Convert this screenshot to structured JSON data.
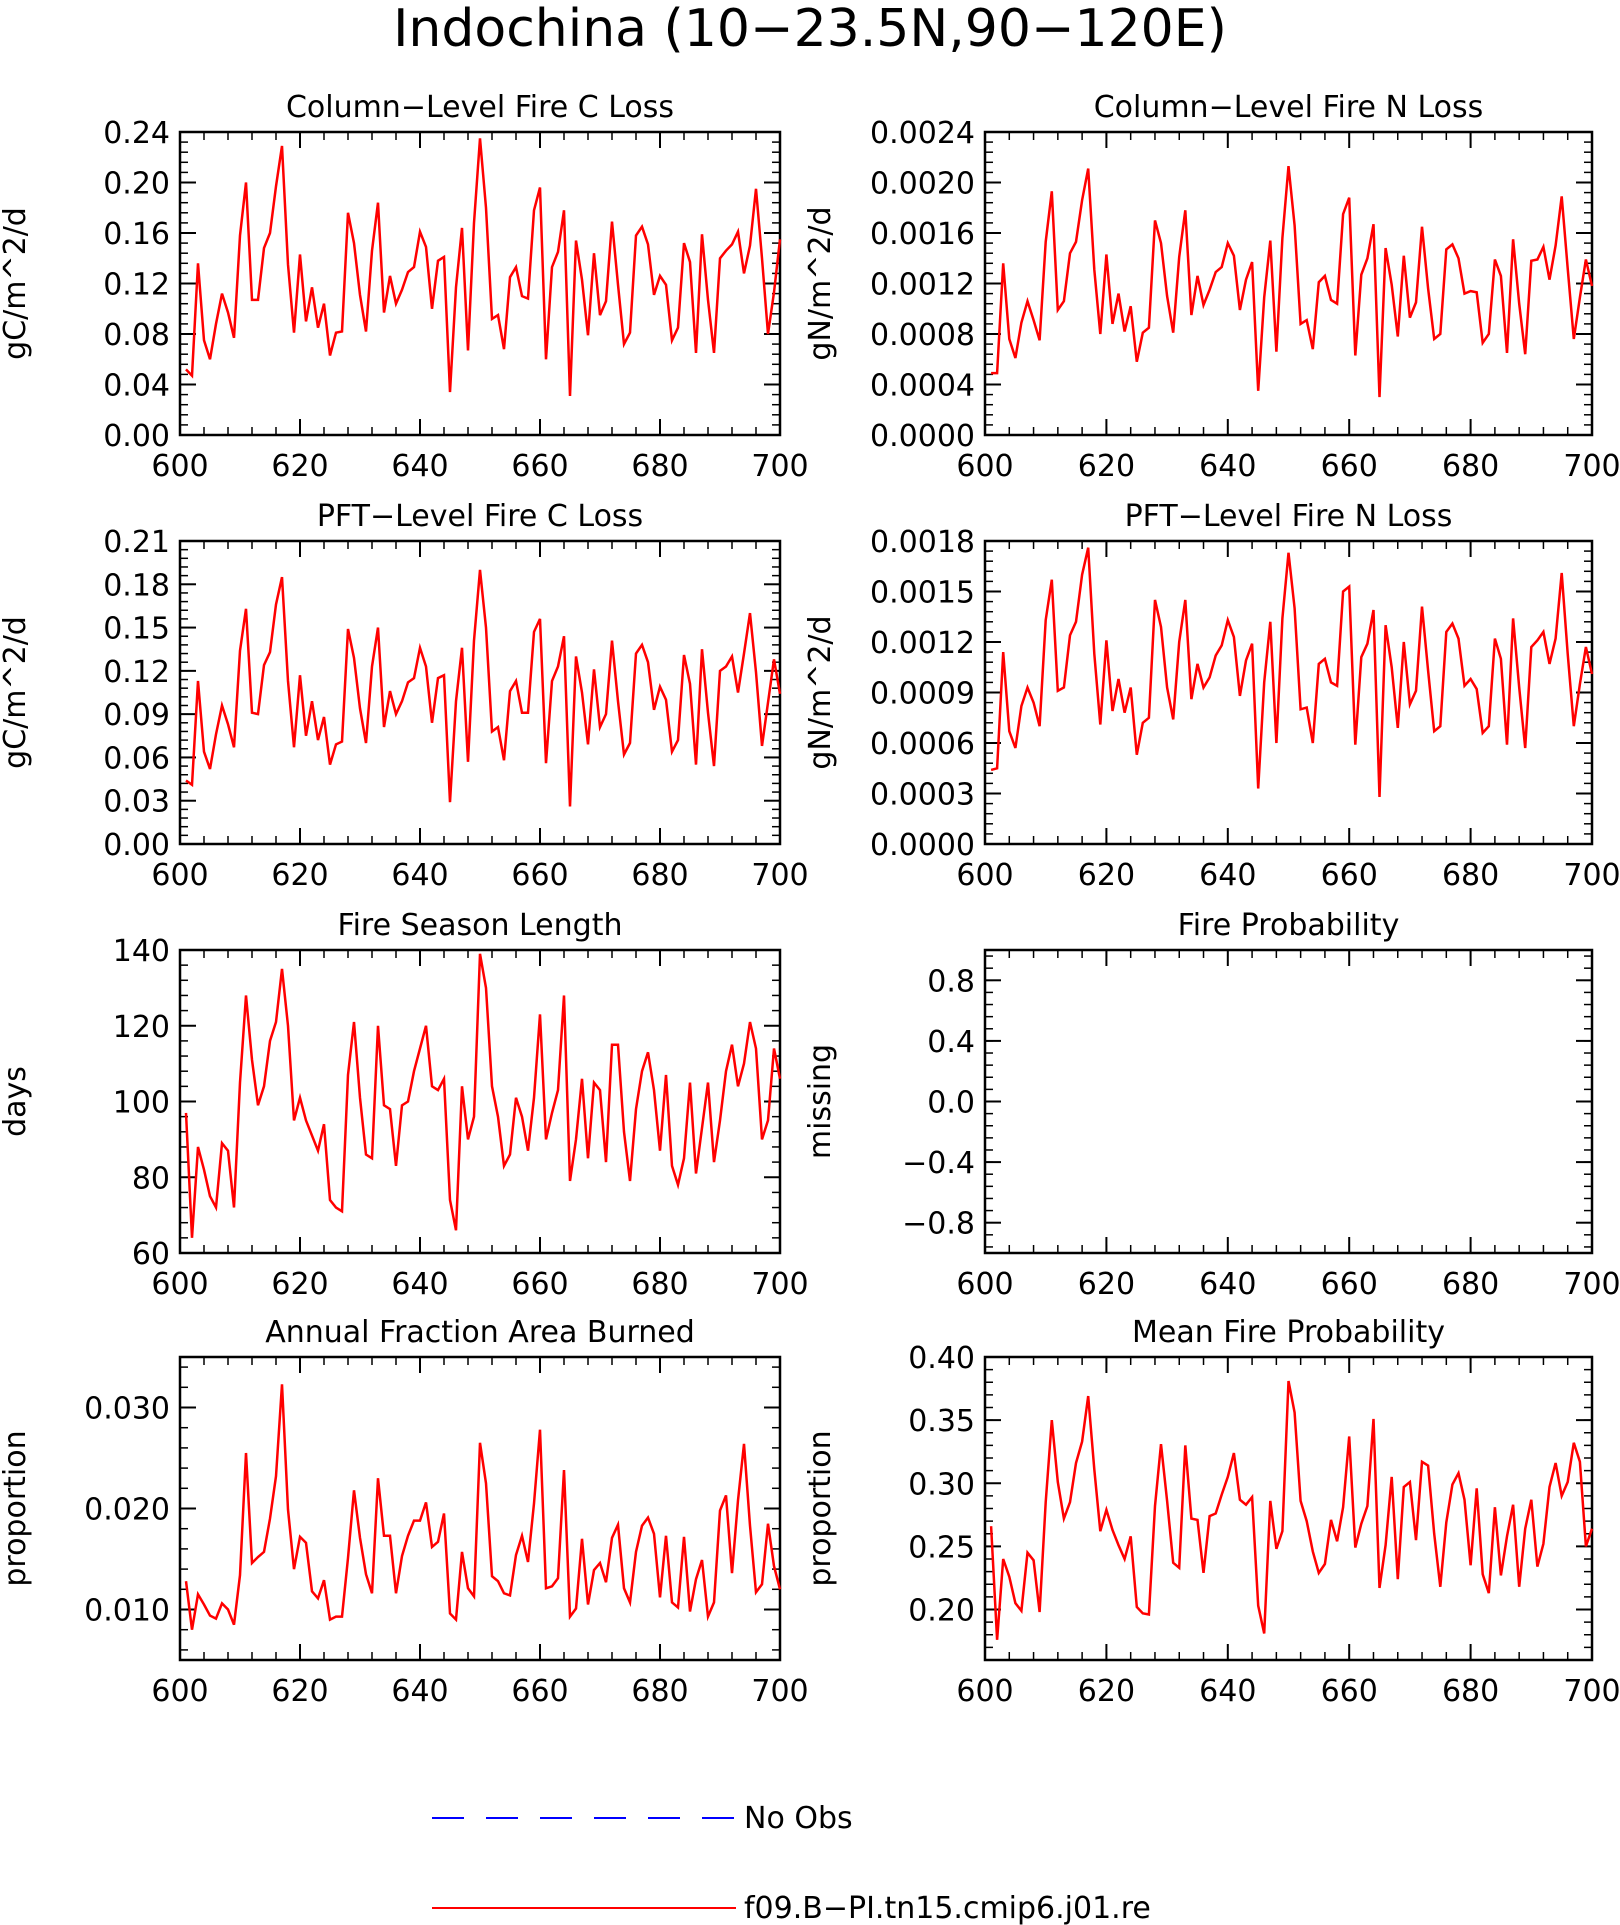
{
  "figure": {
    "title": "Indochina (10−23.5N,90−120E)",
    "line_color": "#ff0000",
    "obs_color": "#0000ff"
  },
  "legend": {
    "obs_label": "No Obs",
    "model_label": "f09.B−PI.tn15.cmip6.j01.re"
  },
  "chart_data": [
    {
      "type": "line",
      "title": "Column−Level Fire C Loss",
      "xlabel": "",
      "ylabel": "gC/m^2/d",
      "xlim": [
        600,
        700
      ],
      "ylim": [
        0,
        0.24
      ],
      "xticks": [
        600,
        620,
        640,
        660,
        680,
        700
      ],
      "yticks": [
        0,
        0.04,
        0.08,
        0.12,
        0.16,
        0.2,
        0.24
      ],
      "ytick_labels": [
        "0.00",
        "0.04",
        "0.08",
        "0.12",
        "0.16",
        "0.20",
        "0.24"
      ],
      "x_start": 601,
      "series": [
        {
          "values": [
            0.052,
            0.047,
            0.136,
            0.075,
            0.06,
            0.088,
            0.112,
            0.097,
            0.077,
            0.158,
            0.2,
            0.107,
            0.107,
            0.148,
            0.16,
            0.197,
            0.229,
            0.135,
            0.081,
            0.143,
            0.09,
            0.117,
            0.085,
            0.104,
            0.063,
            0.081,
            0.082,
            0.176,
            0.152,
            0.111,
            0.082,
            0.146,
            0.184,
            0.097,
            0.126,
            0.104,
            0.115,
            0.129,
            0.133,
            0.161,
            0.149,
            0.1,
            0.138,
            0.141,
            0.034,
            0.117,
            0.164,
            0.067,
            0.168,
            0.235,
            0.18,
            0.092,
            0.095,
            0.068,
            0.125,
            0.133,
            0.11,
            0.108,
            0.178,
            0.196,
            0.06,
            0.133,
            0.145,
            0.178,
            0.031,
            0.154,
            0.123,
            0.079,
            0.144,
            0.095,
            0.106,
            0.169,
            0.119,
            0.072,
            0.081,
            0.158,
            0.165,
            0.151,
            0.111,
            0.126,
            0.119,
            0.075,
            0.085,
            0.152,
            0.137,
            0.065,
            0.159,
            0.107,
            0.065,
            0.14,
            0.146,
            0.151,
            0.161,
            0.128,
            0.15,
            0.195,
            0.14,
            0.08,
            0.113,
            0.155
          ]
        }
      ]
    },
    {
      "type": "line",
      "title": "Column−Level Fire N Loss",
      "xlabel": "",
      "ylabel": "gN/m^2/d",
      "xlim": [
        600,
        700
      ],
      "ylim": [
        0,
        0.0024
      ],
      "xticks": [
        600,
        620,
        640,
        660,
        680,
        700
      ],
      "yticks": [
        0,
        0.0004,
        0.0008,
        0.0012,
        0.0016,
        0.002,
        0.0024
      ],
      "ytick_labels": [
        "0.0000",
        "0.0004",
        "0.0008",
        "0.0012",
        "0.0016",
        "0.0020",
        "0.0024"
      ],
      "x_start": 601,
      "series": [
        {
          "values": [
            0.00049,
            0.00049,
            0.00136,
            0.00076,
            0.00061,
            0.00089,
            0.00106,
            0.00091,
            0.00075,
            0.00153,
            0.00193,
            0.00099,
            0.00106,
            0.00144,
            0.00153,
            0.00186,
            0.00211,
            0.00131,
            0.0008,
            0.00143,
            0.00088,
            0.00112,
            0.00082,
            0.00102,
            0.00058,
            0.00081,
            0.00085,
            0.0017,
            0.00152,
            0.0011,
            0.00081,
            0.00141,
            0.00178,
            0.00095,
            0.00126,
            0.00103,
            0.00115,
            0.00129,
            0.00133,
            0.00152,
            0.00142,
            0.00099,
            0.00123,
            0.00137,
            0.00035,
            0.00109,
            0.00154,
            0.00066,
            0.00156,
            0.00213,
            0.00166,
            0.00088,
            0.00091,
            0.00068,
            0.00121,
            0.00126,
            0.00107,
            0.00104,
            0.00175,
            0.00188,
            0.00063,
            0.00127,
            0.0014,
            0.00167,
            0.0003,
            0.00148,
            0.00119,
            0.00078,
            0.00142,
            0.00093,
            0.00105,
            0.00165,
            0.00116,
            0.00076,
            0.0008,
            0.00147,
            0.00151,
            0.0014,
            0.00112,
            0.00114,
            0.00113,
            0.00073,
            0.0008,
            0.00139,
            0.00126,
            0.00065,
            0.00155,
            0.00104,
            0.00064,
            0.00138,
            0.00139,
            0.00149,
            0.00123,
            0.0015,
            0.00189,
            0.00132,
            0.00076,
            0.00109,
            0.00139,
            0.00118
          ]
        }
      ]
    },
    {
      "type": "line",
      "title": "PFT−Level Fire C Loss",
      "xlabel": "",
      "ylabel": "gC/m^2/d",
      "xlim": [
        600,
        700
      ],
      "ylim": [
        0,
        0.21
      ],
      "xticks": [
        600,
        620,
        640,
        660,
        680,
        700
      ],
      "yticks": [
        0,
        0.03,
        0.06,
        0.09,
        0.12,
        0.15,
        0.18,
        0.21
      ],
      "ytick_labels": [
        "0.00",
        "0.03",
        "0.06",
        "0.09",
        "0.12",
        "0.15",
        "0.18",
        "0.21"
      ],
      "x_start": 601,
      "series": [
        {
          "values": [
            0.044,
            0.041,
            0.113,
            0.064,
            0.052,
            0.076,
            0.096,
            0.083,
            0.067,
            0.134,
            0.163,
            0.091,
            0.09,
            0.124,
            0.133,
            0.166,
            0.185,
            0.113,
            0.067,
            0.117,
            0.075,
            0.099,
            0.072,
            0.088,
            0.055,
            0.069,
            0.071,
            0.149,
            0.129,
            0.094,
            0.07,
            0.123,
            0.15,
            0.081,
            0.106,
            0.09,
            0.099,
            0.112,
            0.115,
            0.136,
            0.123,
            0.084,
            0.115,
            0.117,
            0.029,
            0.099,
            0.136,
            0.057,
            0.141,
            0.19,
            0.15,
            0.078,
            0.081,
            0.058,
            0.106,
            0.113,
            0.091,
            0.091,
            0.147,
            0.156,
            0.056,
            0.113,
            0.123,
            0.144,
            0.026,
            0.13,
            0.105,
            0.069,
            0.121,
            0.081,
            0.09,
            0.141,
            0.099,
            0.062,
            0.07,
            0.132,
            0.138,
            0.126,
            0.093,
            0.109,
            0.1,
            0.064,
            0.072,
            0.131,
            0.111,
            0.055,
            0.135,
            0.091,
            0.054,
            0.12,
            0.123,
            0.13,
            0.105,
            0.132,
            0.16,
            0.119,
            0.068,
            0.098,
            0.128,
            0.104
          ]
        }
      ]
    },
    {
      "type": "line",
      "title": "PFT−Level Fire N Loss",
      "xlabel": "",
      "ylabel": "gN/m^2/d",
      "xlim": [
        600,
        700
      ],
      "ylim": [
        0,
        0.0018
      ],
      "xticks": [
        600,
        620,
        640,
        660,
        680,
        700
      ],
      "yticks": [
        0,
        0.0003,
        0.0006,
        0.0009,
        0.0012,
        0.0015,
        0.0018
      ],
      "ytick_labels": [
        "0.0000",
        "0.0003",
        "0.0006",
        "0.0009",
        "0.0012",
        "0.0015",
        "0.0018"
      ],
      "x_start": 601,
      "series": [
        {
          "values": [
            0.00044,
            0.00045,
            0.00114,
            0.00067,
            0.00057,
            0.00082,
            0.00093,
            0.00084,
            0.0007,
            0.00133,
            0.00157,
            0.00091,
            0.00093,
            0.00124,
            0.00132,
            0.0016,
            0.00176,
            0.00113,
            0.00071,
            0.00121,
            0.00079,
            0.00098,
            0.00078,
            0.00093,
            0.00053,
            0.00072,
            0.00075,
            0.00145,
            0.00129,
            0.00093,
            0.00074,
            0.0012,
            0.00145,
            0.00086,
            0.00107,
            0.00093,
            0.00099,
            0.00112,
            0.00118,
            0.00133,
            0.00123,
            0.00088,
            0.00109,
            0.00119,
            0.00033,
            0.00096,
            0.00132,
            0.0006,
            0.00134,
            0.00173,
            0.0014,
            0.0008,
            0.00081,
            0.0006,
            0.00107,
            0.0011,
            0.00096,
            0.00094,
            0.0015,
            0.00153,
            0.00059,
            0.00111,
            0.00119,
            0.00139,
            0.00028,
            0.0013,
            0.00105,
            0.00069,
            0.0012,
            0.00083,
            0.00091,
            0.00141,
            0.00103,
            0.00067,
            0.0007,
            0.00126,
            0.00131,
            0.00122,
            0.00094,
            0.00098,
            0.00092,
            0.00066,
            0.0007,
            0.00122,
            0.0011,
            0.00059,
            0.00134,
            0.00093,
            0.00057,
            0.00117,
            0.00121,
            0.00126,
            0.00107,
            0.00122,
            0.00161,
            0.00113,
            0.0007,
            0.00095,
            0.00117,
            0.00101
          ]
        }
      ]
    },
    {
      "type": "line",
      "title": "Fire Season Length",
      "xlabel": "",
      "ylabel": "days",
      "xlim": [
        600,
        700
      ],
      "ylim": [
        60,
        140
      ],
      "xticks": [
        600,
        620,
        640,
        660,
        680,
        700
      ],
      "yticks": [
        60,
        80,
        100,
        120,
        140
      ],
      "ytick_labels": [
        "60",
        "80",
        "100",
        "120",
        "140"
      ],
      "x_start": 601,
      "series": [
        {
          "values": [
            97,
            64,
            88,
            82,
            75,
            72,
            89,
            87,
            72,
            105,
            128,
            111,
            99,
            104,
            116,
            121,
            135,
            120,
            95,
            101,
            95,
            91,
            87,
            94,
            74,
            72,
            71,
            107,
            121,
            101,
            86,
            85,
            120,
            99,
            98,
            83,
            99,
            100,
            108,
            114,
            120,
            104,
            103,
            106,
            74,
            66,
            104,
            90,
            96,
            139,
            130,
            104,
            96,
            83,
            86,
            101,
            96,
            87,
            101,
            123,
            90,
            97,
            103,
            128,
            79,
            90,
            106,
            85,
            105,
            103,
            84,
            115,
            115,
            92,
            79,
            98,
            108,
            113,
            103,
            87,
            107,
            83,
            78,
            85,
            105,
            81,
            93,
            105,
            84,
            95,
            108,
            115,
            104,
            110,
            121,
            114,
            90,
            95,
            114,
            106
          ]
        }
      ]
    },
    {
      "type": "line",
      "title": "Fire Probability",
      "xlabel": "",
      "ylabel": "missing",
      "xlim": [
        600,
        700
      ],
      "ylim": [
        -1,
        1
      ],
      "xticks": [
        600,
        620,
        640,
        660,
        680,
        700
      ],
      "yticks": [
        -0.8,
        -0.4,
        0,
        0.4,
        0.8
      ],
      "ytick_labels": [
        "−0.8",
        "−0.4",
        "0.0",
        "0.4",
        "0.8"
      ],
      "x_start": 601,
      "series": []
    },
    {
      "type": "line",
      "title": "Annual Fraction Area Burned",
      "xlabel": "",
      "ylabel": "proportion",
      "xlim": [
        600,
        700
      ],
      "ylim": [
        0.005,
        0.035
      ],
      "xticks": [
        600,
        620,
        640,
        660,
        680,
        700
      ],
      "yticks": [
        0.01,
        0.02,
        0.03
      ],
      "ytick_labels": [
        "0.010",
        "0.020",
        "0.030"
      ],
      "x_start": 601,
      "series": [
        {
          "values": [
            0.0128,
            0.008,
            0.0115,
            0.0105,
            0.0094,
            0.0091,
            0.0106,
            0.01,
            0.0085,
            0.0134,
            0.0255,
            0.0146,
            0.0152,
            0.0157,
            0.019,
            0.0232,
            0.0323,
            0.0199,
            0.014,
            0.0172,
            0.0166,
            0.0118,
            0.0111,
            0.0129,
            0.009,
            0.0093,
            0.0093,
            0.0151,
            0.0218,
            0.0171,
            0.0135,
            0.0116,
            0.023,
            0.0173,
            0.0173,
            0.0116,
            0.0153,
            0.0173,
            0.0188,
            0.0188,
            0.0206,
            0.0162,
            0.0167,
            0.0195,
            0.0096,
            0.009,
            0.0157,
            0.0121,
            0.0113,
            0.0265,
            0.0225,
            0.0133,
            0.0128,
            0.0116,
            0.0114,
            0.0154,
            0.0173,
            0.0147,
            0.0205,
            0.0278,
            0.0121,
            0.0123,
            0.0131,
            0.0238,
            0.0093,
            0.0101,
            0.017,
            0.0105,
            0.0139,
            0.0146,
            0.0127,
            0.0171,
            0.0184,
            0.0121,
            0.0107,
            0.0157,
            0.0183,
            0.0191,
            0.0175,
            0.0112,
            0.0173,
            0.0107,
            0.0102,
            0.0172,
            0.0098,
            0.013,
            0.0149,
            0.0093,
            0.0107,
            0.0198,
            0.0213,
            0.0136,
            0.0208,
            0.0264,
            0.0183,
            0.0117,
            0.0125,
            0.0185,
            0.0143,
            0.012
          ]
        }
      ]
    },
    {
      "type": "line",
      "title": "Mean Fire Probability",
      "xlabel": "",
      "ylabel": "proportion",
      "xlim": [
        600,
        700
      ],
      "ylim": [
        0.16,
        0.4
      ],
      "xticks": [
        600,
        620,
        640,
        660,
        680,
        700
      ],
      "yticks": [
        0.2,
        0.25,
        0.3,
        0.35,
        0.4
      ],
      "ytick_labels": [
        "0.20",
        "0.25",
        "0.30",
        "0.35",
        "0.40"
      ],
      "x_start": 601,
      "series": [
        {
          "values": [
            0.266,
            0.176,
            0.24,
            0.226,
            0.205,
            0.199,
            0.245,
            0.239,
            0.198,
            0.285,
            0.35,
            0.301,
            0.272,
            0.285,
            0.316,
            0.333,
            0.369,
            0.311,
            0.262,
            0.279,
            0.263,
            0.251,
            0.24,
            0.258,
            0.202,
            0.197,
            0.196,
            0.282,
            0.331,
            0.286,
            0.237,
            0.233,
            0.33,
            0.272,
            0.271,
            0.229,
            0.274,
            0.276,
            0.291,
            0.305,
            0.324,
            0.287,
            0.283,
            0.289,
            0.203,
            0.181,
            0.286,
            0.248,
            0.262,
            0.381,
            0.356,
            0.286,
            0.27,
            0.246,
            0.229,
            0.236,
            0.271,
            0.254,
            0.281,
            0.337,
            0.249,
            0.268,
            0.282,
            0.351,
            0.217,
            0.251,
            0.305,
            0.224,
            0.297,
            0.301,
            0.255,
            0.317,
            0.314,
            0.26,
            0.218,
            0.269,
            0.299,
            0.308,
            0.287,
            0.235,
            0.296,
            0.228,
            0.213,
            0.281,
            0.227,
            0.258,
            0.283,
            0.218,
            0.264,
            0.287,
            0.234,
            0.252,
            0.297,
            0.316,
            0.29,
            0.301,
            0.332,
            0.317,
            0.25,
            0.264
          ]
        }
      ]
    }
  ]
}
